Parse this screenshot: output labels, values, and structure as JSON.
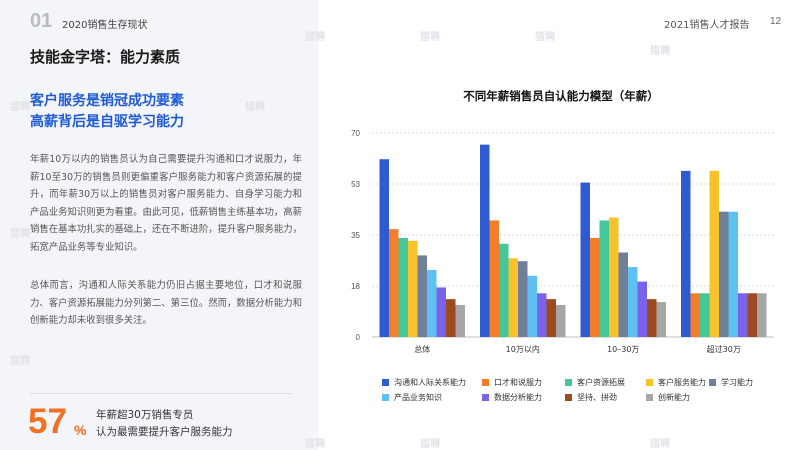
{
  "header": {
    "section_number": "01",
    "section_title": "2020销售生存现状",
    "report_title": "2021销售人才报告",
    "page_number": "12"
  },
  "page_heading": "技能金字塔：能力素质",
  "headline": {
    "line1": "客户服务是销冠成功要素",
    "line2": "高薪背后是自驱学习能力"
  },
  "paragraphs": {
    "p1": "年薪10万以内的销售员认为自己需要提升沟通和口才说服力，年薪10至30万的销售员则更偏重客户服务能力和客户资源拓展的提升，而年薪30万以上的销售员对客户服务能力、自身学习能力和产品业务知识则更为看重。由此可见，低薪销售主练基本功，高薪销售在基本功扎实的基础上，还在不断进阶，提升客户服务能力，拓宽产品业务等专业知识。",
    "p2": "总体而言，沟通和人际关系能力仍旧占据主要地位，口才和说服力、客户资源拓展能力分列第二、第三位。然而，数据分析能力和创新能力却未收到很多关注。"
  },
  "stat": {
    "number": "57",
    "percent_sign": "%",
    "line1": "年薪超30万销售专员",
    "line2": "认为最需要提升客户服务能力"
  },
  "watermark_text": "猎聘",
  "chart_data": {
    "type": "bar",
    "title": "不同年薪销售员自认能力模型（年薪）",
    "categories": [
      "总体",
      "10万以内",
      "10–30万",
      "超过30万"
    ],
    "ylim": [
      0,
      70
    ],
    "yticks": [
      "0",
      "18",
      "35",
      "53",
      "70"
    ],
    "ytick_values": [
      0,
      17.5,
      35,
      52.5,
      70
    ],
    "grid": true,
    "legend_position": "bottom",
    "series": [
      {
        "name": "沟通和人际关系能力",
        "color": "#2e5bd1",
        "values": [
          61,
          66,
          53,
          57
        ]
      },
      {
        "name": "口才和说服力",
        "color": "#f47f2a",
        "values": [
          37,
          40,
          34,
          15
        ]
      },
      {
        "name": "客户资源拓展",
        "color": "#45c79a",
        "values": [
          34,
          32,
          40,
          15
        ]
      },
      {
        "name": "客户服务能力",
        "color": "#f8c22b",
        "values": [
          33,
          27,
          41,
          57
        ]
      },
      {
        "name": "学习能力",
        "color": "#6f7f9a",
        "values": [
          28,
          26,
          29,
          43
        ]
      },
      {
        "name": "产品业务知识",
        "color": "#5ec1f1",
        "values": [
          23,
          21,
          24,
          43
        ]
      },
      {
        "name": "数据分析能力",
        "color": "#7a63ea",
        "values": [
          17,
          15,
          19,
          15
        ]
      },
      {
        "name": "坚持、拼劲",
        "color": "#9c4b1e",
        "values": [
          13,
          13,
          13,
          15
        ]
      },
      {
        "name": "创新能力",
        "color": "#a6a6a6",
        "values": [
          11,
          11,
          12,
          15
        ]
      }
    ]
  }
}
